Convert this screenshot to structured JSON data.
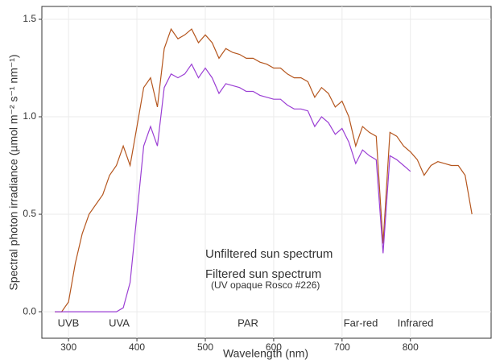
{
  "chart_data": {
    "type": "line",
    "x_label": "Wavelength (nm)",
    "y_label": "Spectral photon irradiance (µmol m⁻² s⁻¹ nm⁻¹)",
    "x": [
      280,
      290,
      300,
      310,
      320,
      330,
      340,
      350,
      360,
      370,
      380,
      390,
      400,
      410,
      420,
      430,
      440,
      450,
      460,
      470,
      480,
      490,
      500,
      510,
      520,
      530,
      540,
      550,
      560,
      570,
      580,
      590,
      600,
      610,
      620,
      630,
      640,
      650,
      660,
      670,
      680,
      690,
      700,
      710,
      720,
      730,
      740,
      750,
      760,
      770,
      780,
      790,
      800,
      810,
      820,
      830,
      840,
      850,
      860,
      870,
      880,
      890
    ],
    "series": [
      {
        "name": "Unfiltered sun spectrum",
        "color": "#b5561e",
        "values": [
          0,
          0,
          0.05,
          0.25,
          0.4,
          0.5,
          0.55,
          0.6,
          0.7,
          0.75,
          0.85,
          0.75,
          0.95,
          1.15,
          1.2,
          1.05,
          1.35,
          1.45,
          1.4,
          1.42,
          1.45,
          1.38,
          1.42,
          1.38,
          1.3,
          1.35,
          1.33,
          1.32,
          1.3,
          1.3,
          1.28,
          1.27,
          1.25,
          1.25,
          1.22,
          1.2,
          1.2,
          1.18,
          1.1,
          1.15,
          1.12,
          1.05,
          1.08,
          1.0,
          0.85,
          0.95,
          0.92,
          0.9,
          0.35,
          0.92,
          0.9,
          0.85,
          0.82,
          0.78,
          0.7,
          0.75,
          0.77,
          0.76,
          0.75,
          0.75,
          0.7,
          0.5
        ]
      },
      {
        "name": "Filtered sun spectrum",
        "color": "#9b3fd4",
        "values": [
          0,
          0,
          0,
          0,
          0,
          0,
          0,
          0,
          0,
          0,
          0.02,
          0.15,
          0.5,
          0.85,
          0.95,
          0.85,
          1.15,
          1.22,
          1.2,
          1.22,
          1.27,
          1.2,
          1.25,
          1.2,
          1.12,
          1.17,
          1.16,
          1.15,
          1.13,
          1.13,
          1.11,
          1.1,
          1.09,
          1.09,
          1.06,
          1.04,
          1.04,
          1.03,
          0.95,
          1.0,
          0.97,
          0.91,
          0.94,
          0.87,
          0.76,
          0.83,
          0.8,
          0.78,
          0.3,
          0.8,
          0.78,
          0.75,
          0.72,
          null,
          null,
          null,
          null,
          null,
          null,
          null,
          null,
          null
        ]
      }
    ],
    "series_note": "(UV opaque Rosco #226)",
    "bands": [
      {
        "text": "UVB",
        "color": "#6a3d9a"
      },
      {
        "text": "UVA",
        "color": "#9b3fd4"
      },
      {
        "text": "PAR",
        "color": "#1f9a1f"
      },
      {
        "text": "Far-red",
        "color": "#8b2c2c"
      },
      {
        "text": "Infrared",
        "color": "#e0a020"
      }
    ],
    "xlim": [
      261,
      918
    ],
    "xticks": [
      300,
      400,
      500,
      600,
      700,
      800
    ],
    "ylim": [
      -0.136,
      1.566
    ],
    "yticks": [
      {
        "value": 0,
        "label": "0.0"
      },
      0.5,
      {
        "value": 1,
        "label": "1.0"
      },
      1.5
    ],
    "grid": true
  }
}
